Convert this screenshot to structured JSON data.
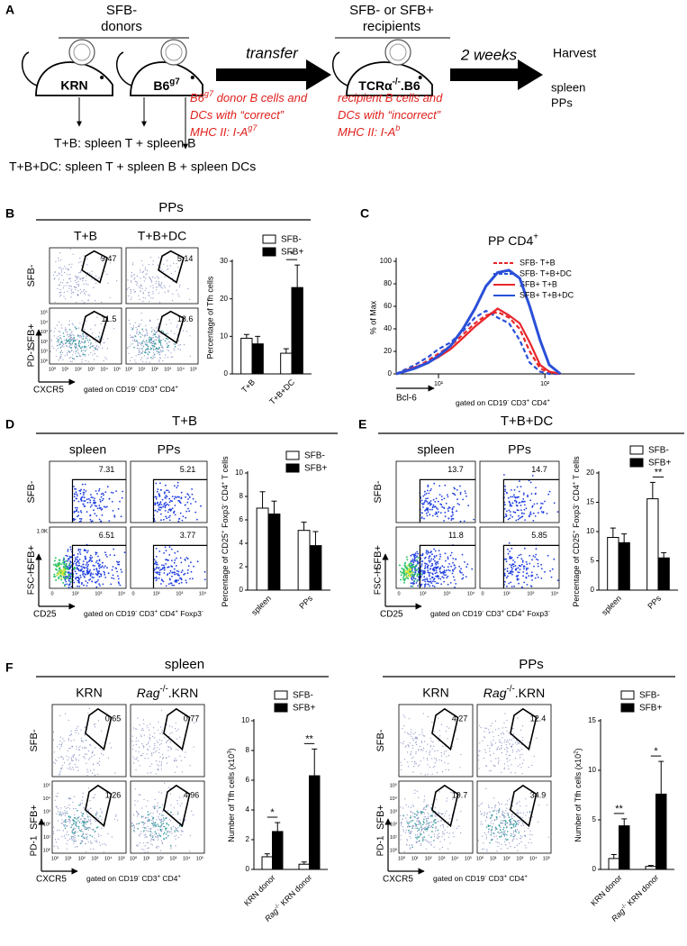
{
  "panel_A": {
    "letter": "A",
    "donors_header": [
      "SFB-",
      "donors"
    ],
    "donor_mice": [
      "KRN",
      [
        "B6",
        "g7"
      ]
    ],
    "transfer": "transfer",
    "recipients_header": [
      "SFB- or SFB+",
      "recipients"
    ],
    "recipient_mouse": [
      "TCRα",
      "-/-",
      ".B6"
    ],
    "interval": "2 weeks",
    "harvest": [
      "Harvest",
      "spleen",
      "PPs"
    ],
    "donor_note": [
      [
        "B6",
        "g7",
        " donor B cells and"
      ],
      [
        "DCs with “correct”"
      ],
      [
        "MHC II: I-A",
        "g7"
      ]
    ],
    "recipient_note": [
      [
        "recipient B cells and"
      ],
      [
        "DCs with “incorrect”"
      ],
      [
        "MHC II: I-A",
        "b"
      ]
    ],
    "groups": [
      "T+B: spleen T + spleen B",
      "T+B+DC: spleen T + spleen B + spleen DCs"
    ]
  },
  "panel_B": {
    "letter": "B",
    "title": "PPs",
    "columns": [
      "T+B",
      "T+B+DC"
    ],
    "rows": [
      "SFB-",
      "SFB+"
    ],
    "gates": [
      [
        9.47,
        5.14
      ],
      [
        11.5,
        18.6
      ]
    ],
    "y_marker": "PD-1",
    "x_marker": "CXCR5",
    "flow_ticks": [
      "10⁰",
      "10¹",
      "10²",
      "10³",
      "10⁴",
      "10⁵"
    ],
    "gating": [
      "gated on CD19",
      "-",
      " CD3",
      "+",
      " CD4",
      "+"
    ],
    "chart": {
      "type": "bar",
      "ylabel": "Percentage of Tfh cells",
      "categories": [
        "T+B",
        "T+B+DC"
      ],
      "series": [
        {
          "name": "SFB-",
          "color": "#ffffff",
          "values": [
            9.5,
            5.5
          ],
          "errors": [
            1.0,
            1.2
          ]
        },
        {
          "name": "SFB+",
          "color": "#000000",
          "values": [
            8,
            23
          ],
          "errors": [
            2,
            6
          ]
        }
      ],
      "ylim": [
        0,
        30
      ],
      "yticks": [
        0,
        10,
        20,
        30
      ],
      "significance": [
        null,
        "*"
      ]
    }
  },
  "panel_C": {
    "letter": "C",
    "chart": {
      "type": "line",
      "title": [
        "PP CD4",
        "+"
      ],
      "ylabel": "% of Max",
      "xlabel": "Bcl-6",
      "note": [
        "gated on CD19",
        "-",
        " CD3",
        "+",
        " CD4",
        "+"
      ],
      "x": [
        4,
        6,
        8,
        10,
        13,
        17,
        22,
        28,
        36,
        46,
        58,
        72,
        90,
        110,
        140
      ],
      "series": [
        {
          "name": "SFB- T+B",
          "color": "#e8262a",
          "dashed": true,
          "values": [
            0,
            5,
            12,
            18,
            25,
            35,
            45,
            52,
            55,
            50,
            40,
            20,
            5,
            1,
            0
          ]
        },
        {
          "name": "SFB- T+B+DC",
          "color": "#2a4fd8",
          "dashed": true,
          "values": [
            0,
            8,
            15,
            22,
            28,
            38,
            50,
            56,
            50,
            45,
            30,
            10,
            2,
            0,
            0
          ]
        },
        {
          "name": "SFB+ T+B",
          "color": "#e8262a",
          "dashed": false,
          "values": [
            0,
            6,
            10,
            15,
            22,
            32,
            42,
            50,
            58,
            52,
            45,
            28,
            8,
            2,
            0
          ]
        },
        {
          "name": "SFB+ T+B+DC",
          "color": "#2a4fd8",
          "dashed": false,
          "values": [
            0,
            5,
            10,
            16,
            25,
            40,
            58,
            78,
            90,
            92,
            85,
            60,
            30,
            8,
            0
          ]
        }
      ],
      "xscale": "log",
      "xlim": [
        4,
        700
      ],
      "xticks": [
        {
          "value": 10,
          "label": "10¹"
        },
        {
          "value": 100,
          "label": "10²"
        }
      ],
      "ylim": [
        0,
        100
      ],
      "yticks": [
        0,
        20,
        40,
        60,
        80,
        100
      ]
    }
  },
  "panel_D": {
    "letter": "D",
    "title": "T+B",
    "columns": [
      "spleen",
      "PPs"
    ],
    "rows": [
      "SFB-",
      "SFB+"
    ],
    "gates": [
      [
        7.31,
        5.21
      ],
      [
        6.51,
        3.77
      ]
    ],
    "y_marker": "FSC-H",
    "x_marker": "CD25",
    "y_tick": "1.0K",
    "flow_ticks": [
      "0",
      "10²",
      "10³",
      "10⁴"
    ],
    "gating": [
      "gated on CD19",
      "-",
      " CD3",
      "+",
      " CD4",
      "+",
      " Foxp3",
      "-"
    ],
    "chart": {
      "type": "bar",
      "ylabel": [
        "Percentage of CD25",
        "+",
        " Foxp3",
        "-",
        " CD4",
        "+",
        " T cells"
      ],
      "categories": [
        "spleen",
        "PPs"
      ],
      "series": [
        {
          "name": "SFB-",
          "color": "#ffffff",
          "values": [
            7.0,
            5.1
          ],
          "errors": [
            1.4,
            0.7
          ]
        },
        {
          "name": "SFB+",
          "color": "#000000",
          "values": [
            6.5,
            3.8
          ],
          "errors": [
            1.1,
            1.2
          ]
        }
      ],
      "ylim": [
        0,
        10
      ],
      "yticks": [
        0,
        2,
        4,
        6,
        8,
        10
      ],
      "significance": [
        null,
        null
      ]
    }
  },
  "panel_E": {
    "letter": "E",
    "title": "T+B+DC",
    "columns": [
      "spleen",
      "PPs"
    ],
    "rows": [
      "SFB-",
      "SFB+"
    ],
    "gates": [
      [
        13.7,
        14.7
      ],
      [
        11.8,
        5.85
      ]
    ],
    "y_marker": "FSC-H",
    "x_marker": "CD25",
    "flow_ticks": [
      "0",
      "10²",
      "10³",
      "10⁴"
    ],
    "gating": [
      "gated on CD19",
      "-",
      " CD3",
      "+",
      " CD4",
      "+",
      " Foxp3",
      "-"
    ],
    "chart": {
      "type": "bar",
      "ylabel": [
        "Percentage of CD25",
        "+",
        " Foxp3",
        "-",
        " CD4",
        "+",
        " T cells"
      ],
      "categories": [
        "spleen",
        "PPs"
      ],
      "series": [
        {
          "name": "SFB-",
          "color": "#ffffff",
          "values": [
            9,
            15.6
          ],
          "errors": [
            1.6,
            2.8
          ]
        },
        {
          "name": "SFB+",
          "color": "#000000",
          "values": [
            8.1,
            5.5
          ],
          "errors": [
            1.5,
            0.9
          ]
        }
      ],
      "ylim": [
        0,
        20
      ],
      "yticks": [
        0,
        5,
        10,
        15,
        20
      ],
      "significance": [
        null,
        "**"
      ]
    }
  },
  "panel_F": {
    "letter": "F",
    "halves": [
      {
        "title": "spleen",
        "columns": [
          "KRN",
          [
            "Rag",
            "-/-",
            ".KRN"
          ]
        ],
        "rows": [
          "SFB-",
          "SFB+"
        ],
        "gates": [
          [
            0.65,
            0.77
          ],
          [
            1.26,
            4.96
          ]
        ],
        "y_marker": "PD-1",
        "x_marker": "CXCR5",
        "flow_ticks": [
          "10⁰",
          "10¹",
          "10²",
          "10³",
          "10⁴",
          "10⁵"
        ],
        "gating": [
          "gated on CD19",
          "-",
          " CD3",
          "+",
          " CD4",
          "+"
        ],
        "chart": {
          "type": "bar",
          "ylabel": [
            "Number of Tfh cells (x10",
            "3",
            ")"
          ],
          "categories": [
            "KRN donor",
            [
              "Rag",
              "-/-",
              " KRN donor"
            ]
          ],
          "series": [
            {
              "name": "SFB-",
              "color": "#ffffff",
              "values": [
                0.85,
                0.35
              ],
              "errors": [
                0.2,
                0.15
              ]
            },
            {
              "name": "SFB+",
              "color": "#000000",
              "values": [
                2.55,
                6.3
              ],
              "errors": [
                0.6,
                1.8
              ]
            }
          ],
          "ylim": [
            0,
            10
          ],
          "yticks": [
            0,
            2,
            4,
            6,
            8,
            10
          ],
          "significance": [
            "*",
            "**"
          ]
        }
      },
      {
        "title": "PPs",
        "columns": [
          "KRN",
          [
            "Rag",
            "-/-",
            ".KRN"
          ]
        ],
        "rows": [
          "SFB-",
          "SFB+"
        ],
        "gates": [
          [
            4.27,
            12.4
          ],
          [
            19.7,
            34.9
          ]
        ],
        "y_marker": "PD-1",
        "x_marker": "CXCR5",
        "flow_ticks": [
          "10⁰",
          "10¹",
          "10²",
          "10³",
          "10⁴",
          "10⁵"
        ],
        "gating": [
          "gated on CD19",
          "-",
          " CD3",
          "+",
          " CD4",
          "+"
        ],
        "chart": {
          "type": "bar",
          "ylabel": [
            "Number of Tfh cells (x10",
            "2",
            ")"
          ],
          "categories": [
            "KRN donor",
            [
              "Rag",
              "-/-",
              " KRN donor"
            ]
          ],
          "series": [
            {
              "name": "SFB-",
              "color": "#ffffff",
              "values": [
                1.1,
                0.3
              ],
              "errors": [
                0.4,
                0.1
              ]
            },
            {
              "name": "SFB+",
              "color": "#000000",
              "values": [
                4.4,
                7.6
              ],
              "errors": [
                0.7,
                3.3
              ]
            }
          ],
          "ylim": [
            0,
            15
          ],
          "yticks": [
            0,
            5,
            10,
            15
          ],
          "significance": [
            "**",
            "*"
          ]
        }
      }
    ]
  }
}
